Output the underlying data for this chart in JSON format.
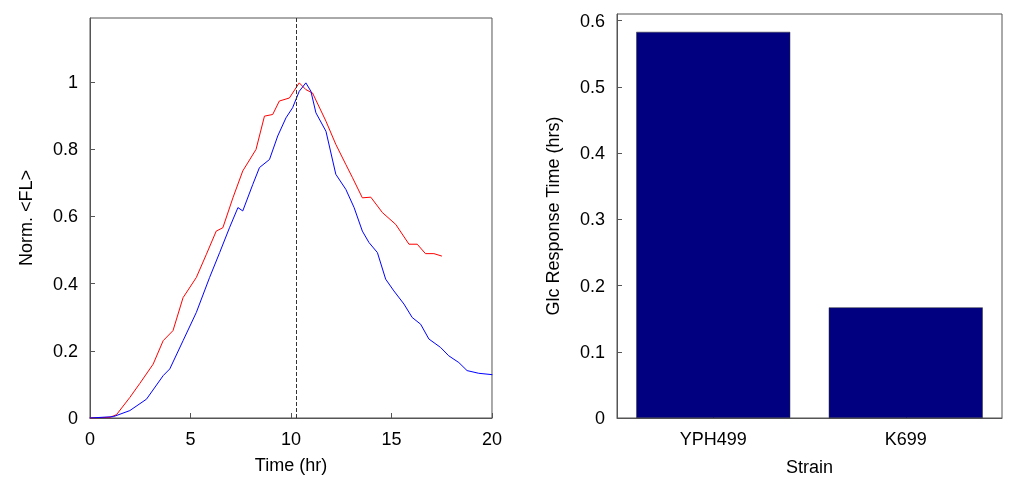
{
  "chart_data": [
    {
      "type": "line",
      "xlabel": "Time (hr)",
      "ylabel": "Norm. <FL>",
      "xlim": [
        0,
        20
      ],
      "xticks": [
        0,
        5,
        10,
        15,
        20
      ],
      "ylim": [
        0,
        1.19
      ],
      "yticks": [
        0,
        0.2,
        0.4,
        0.6,
        0.8,
        1
      ],
      "grid": false,
      "marker": "none",
      "line_style": "solid",
      "ref_lines": [
        {
          "axis": "x",
          "value": 10.25,
          "color": "#333333",
          "line_style": "dashed"
        }
      ],
      "series": [
        {
          "color": "#ff0000",
          "x": [
            0,
            1.0,
            1.32,
            1.98,
            2.48,
            3.14,
            3.64,
            4.13,
            4.63,
            5.29,
            5.79,
            6.28,
            6.61,
            7.11,
            7.6,
            8.26,
            8.68,
            9.09,
            9.42,
            9.92,
            10.41,
            10.74,
            11.07,
            11.74,
            12.23,
            12.73,
            13.06,
            13.55,
            13.97,
            14.55,
            15.21,
            15.87,
            16.28,
            16.69,
            17.11,
            17.49
          ],
          "values": [
            0,
            0.002,
            0.01,
            0.061,
            0.103,
            0.16,
            0.23,
            0.26,
            0.358,
            0.418,
            0.487,
            0.556,
            0.566,
            0.655,
            0.735,
            0.799,
            0.898,
            0.903,
            0.943,
            0.952,
            0.997,
            0.977,
            0.967,
            0.883,
            0.814,
            0.754,
            0.715,
            0.655,
            0.657,
            0.611,
            0.576,
            0.517,
            0.517,
            0.489,
            0.489,
            0.482
          ]
        },
        {
          "color": "#0000ff",
          "x": [
            0,
            1.16,
            1.98,
            2.81,
            3.64,
            3.97,
            4.63,
            5.29,
            5.95,
            6.45,
            6.94,
            7.36,
            7.6,
            8.1,
            8.43,
            8.93,
            9.34,
            9.75,
            10.08,
            10.41,
            10.74,
            10.99,
            11.24,
            11.74,
            12.23,
            12.73,
            13.14,
            13.55,
            13.88,
            14.3,
            14.71,
            15.12,
            15.62,
            16.03,
            16.45,
            16.86,
            17.44,
            17.85,
            18.35,
            18.76,
            19.34,
            20
          ],
          "values": [
            0,
            0.004,
            0.022,
            0.056,
            0.126,
            0.146,
            0.23,
            0.314,
            0.418,
            0.492,
            0.566,
            0.626,
            0.616,
            0.695,
            0.745,
            0.769,
            0.839,
            0.893,
            0.923,
            0.972,
            0.997,
            0.972,
            0.908,
            0.853,
            0.725,
            0.68,
            0.626,
            0.556,
            0.522,
            0.492,
            0.413,
            0.378,
            0.339,
            0.299,
            0.279,
            0.235,
            0.21,
            0.185,
            0.165,
            0.141,
            0.133,
            0.129
          ]
        }
      ]
    },
    {
      "type": "bar",
      "xlabel": "Strain",
      "ylabel": "Glc Response Time (hrs)",
      "categories": [
        "YPH499",
        "K699"
      ],
      "values": [
        0.583,
        0.167
      ],
      "color": "#000080",
      "ylim": [
        0,
        0.61
      ],
      "yticks": [
        0,
        0.1,
        0.2,
        0.3,
        0.4,
        0.5,
        0.6
      ],
      "grid": false
    }
  ]
}
